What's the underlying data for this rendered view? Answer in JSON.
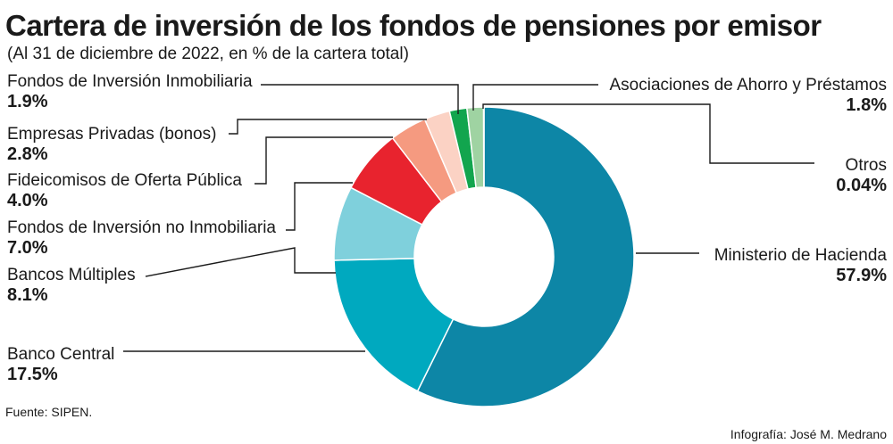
{
  "chart_data": {
    "type": "pie",
    "title": "Cartera de inversión de los fondos de pensiones por emisor",
    "subtitle": "(Al 31 de diciembre de 2022, en % de la cartera total)",
    "slices": [
      {
        "label": "Ministerio de Hacienda",
        "value": 57.9,
        "value_label": "57.9%",
        "color": "#0d86a6"
      },
      {
        "label": "Banco Central",
        "value": 17.5,
        "value_label": "17.5%",
        "color": "#00a9bf"
      },
      {
        "label": "Bancos Múltiples",
        "value": 8.1,
        "value_label": "8.1%",
        "color": "#7fd0dc"
      },
      {
        "label": "Fondos de Inversión no Inmobiliaria",
        "value": 7.0,
        "value_label": "7.0%",
        "color": "#e8232e"
      },
      {
        "label": "Fideicomisos de Oferta Pública",
        "value": 4.0,
        "value_label": "4.0%",
        "color": "#f59a80"
      },
      {
        "label": "Empresas Privadas (bonos)",
        "value": 2.8,
        "value_label": "2.8%",
        "color": "#fbd2c4"
      },
      {
        "label": "Fondos de Inversión Inmobiliaria",
        "value": 1.9,
        "value_label": "1.9%",
        "color": "#12a54e"
      },
      {
        "label": "Asociaciones de Ahorro y Préstamos",
        "value": 1.8,
        "value_label": "1.8%",
        "color": "#9fd3a2"
      },
      {
        "label": "Otros",
        "value": 0.04,
        "value_label": "0.04%",
        "color": "#3b7a3e"
      }
    ]
  },
  "source": "Fuente: SIPEN.",
  "credit": "Infografía: José M. Medrano"
}
